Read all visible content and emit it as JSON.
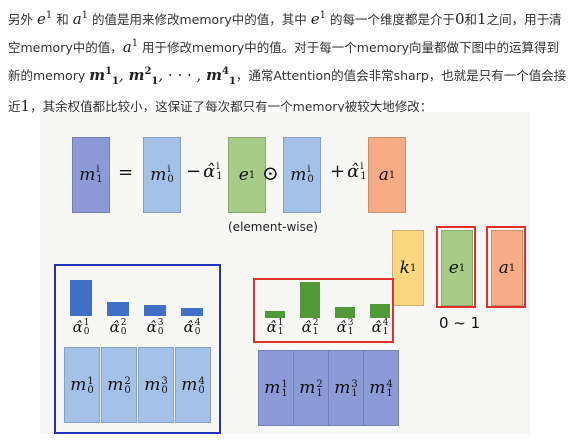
{
  "paragraph": {
    "t1": "另外 ",
    "t2": " 和 ",
    "t3": " 的值是用来修改memory中的值，其中 ",
    "t4": " 的每一个维度都是介于",
    "t5": "0",
    "t6": "和",
    "t7": "1",
    "t8": "之间，用于清空memory中的值，",
    "t9": " 用于修改memory中的值。对于每一个memory向量都做下图中的运算得到新的memory ",
    "t10": "，通常Attention的值会非常sharp，也就是只有一个值会接近",
    "t11": "1",
    "t12": "，其余权值都比较小，这保证了每次都只有一个memory被较大地修改：",
    "e_base": "e",
    "a_base": "a",
    "sup1": "1",
    "mseq_m": "m",
    "mseq_sub": "1",
    "mseq_sups": [
      "1",
      "2",
      "4"
    ],
    "mseq_sep": ", ",
    "mseq_dots": "· · · ,"
  },
  "equation": {
    "lhs": {
      "base": "m",
      "sup": "i",
      "sub": "1"
    },
    "eq": "=",
    "m0": {
      "base": "m",
      "sup": "i",
      "sub": "0"
    },
    "minus": "−",
    "alpha": {
      "base": "α̂",
      "sup": "i",
      "sub": "1"
    },
    "e": {
      "base": "e",
      "sup": "1"
    },
    "odot": "⊙",
    "m0b": {
      "base": "m",
      "sup": "i",
      "sub": "0"
    },
    "plus": "+",
    "alpha2": {
      "base": "α̂",
      "sup": "i",
      "sub": "1"
    },
    "a": {
      "base": "a",
      "sup": "1"
    },
    "caption": "(element-wise)"
  },
  "side_vectors": {
    "k": {
      "base": "k",
      "sup": "1"
    },
    "e": {
      "base": "e",
      "sup": "1"
    },
    "a": {
      "base": "a",
      "sup": "1"
    },
    "range": "0 ~ 1"
  },
  "left_group": {
    "alpha_labels": [
      {
        "base": "α̂",
        "sup": "1",
        "sub": "0"
      },
      {
        "base": "α̂",
        "sup": "2",
        "sub": "0"
      },
      {
        "base": "α̂",
        "sup": "3",
        "sub": "0"
      },
      {
        "base": "α̂",
        "sup": "4",
        "sub": "0"
      }
    ],
    "attention_values": [
      0.95,
      0.38,
      0.3,
      0.22
    ],
    "memories": [
      {
        "base": "m",
        "sup": "1",
        "sub": "0"
      },
      {
        "base": "m",
        "sup": "2",
        "sub": "0"
      },
      {
        "base": "m",
        "sup": "3",
        "sub": "0"
      },
      {
        "base": "m",
        "sup": "4",
        "sub": "0"
      }
    ]
  },
  "right_group": {
    "alpha_labels": [
      {
        "base": "α̂",
        "sup": "1",
        "sub": "1"
      },
      {
        "base": "α̂",
        "sup": "2",
        "sub": "1"
      },
      {
        "base": "α̂",
        "sup": "3",
        "sub": "1"
      },
      {
        "base": "α̂",
        "sup": "4",
        "sub": "1"
      }
    ],
    "attention_values": [
      0.2,
      1.0,
      0.3,
      0.38
    ],
    "memories": [
      {
        "base": "m",
        "sup": "1",
        "sub": "1"
      },
      {
        "base": "m",
        "sup": "2",
        "sub": "1"
      },
      {
        "base": "m",
        "sup": "3",
        "sub": "1"
      },
      {
        "base": "m",
        "sup": "4",
        "sub": "1"
      }
    ]
  },
  "colors": {
    "memory_blue": "#a4c2e8",
    "gate_green": "#a6cc88",
    "write_orange": "#f7ac86",
    "new_memory_navy": "#8d9ad8",
    "key_yellow": "#fbd77f",
    "bar_blue": "#3f6fc6",
    "bar_green": "#4f9a36",
    "frame_blue": "#2233bb",
    "frame_red": "#e0302a"
  }
}
